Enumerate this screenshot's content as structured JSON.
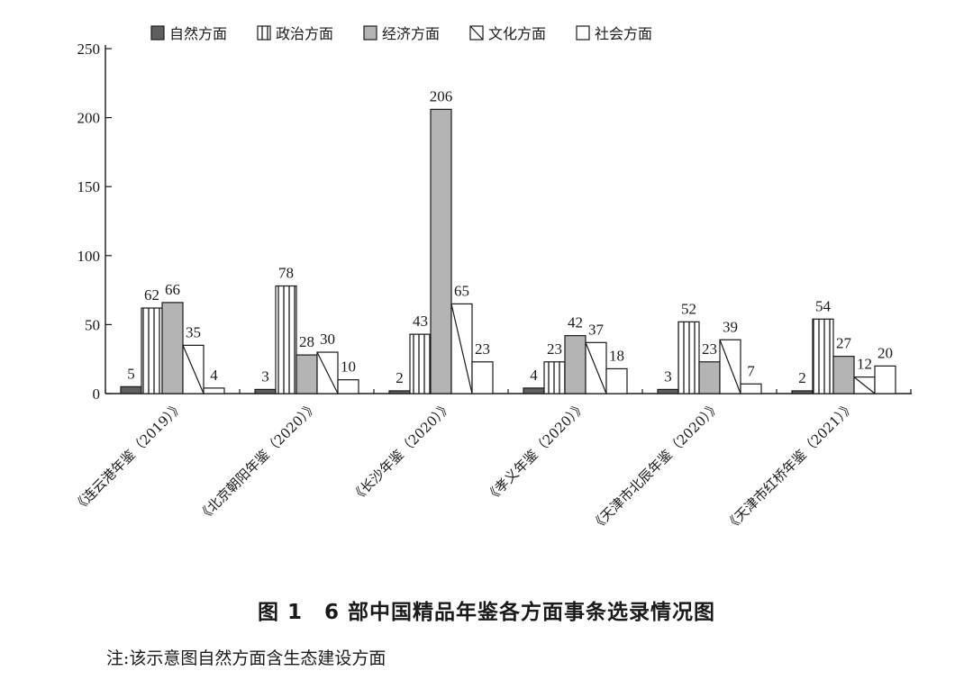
{
  "chart_data": {
    "type": "bar",
    "title": "图 1　6 部中国精品年鉴各方面事条选录情况图",
    "note": "注:该示意图自然方面含生态建设方面",
    "categories": [
      "《连云港年鉴（2019）》",
      "《北京朝阳年鉴（2020）》",
      "《长沙年鉴（2020）》",
      "《孝义年鉴（2020）》",
      "《天津市北辰年鉴（2020）》",
      "《天津市红桥年鉴（2021）》"
    ],
    "series": [
      {
        "name": "自然方面",
        "values": [
          5,
          3,
          2,
          4,
          3,
          2
        ]
      },
      {
        "name": "政治方面",
        "values": [
          62,
          78,
          43,
          23,
          52,
          54
        ]
      },
      {
        "name": "经济方面",
        "values": [
          66,
          28,
          206,
          42,
          23,
          27
        ]
      },
      {
        "name": "文化方面",
        "values": [
          35,
          30,
          65,
          37,
          39,
          12
        ]
      },
      {
        "name": "社会方面",
        "values": [
          4,
          10,
          23,
          18,
          7,
          20
        ]
      }
    ],
    "ylim": [
      0,
      250
    ],
    "yticks": [
      0,
      50,
      100,
      150,
      200,
      250
    ],
    "xlabel": "",
    "ylabel": "",
    "grid": false,
    "legend_position": "top"
  }
}
